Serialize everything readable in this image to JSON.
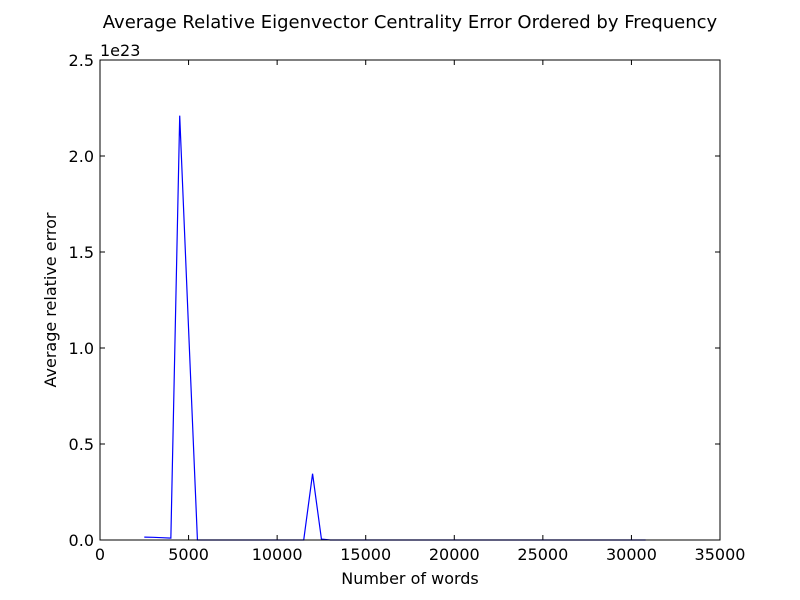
{
  "chart_data": {
    "type": "line",
    "title": "Average Relative Eigenvector Centrality Error Ordered by Frequency",
    "xlabel": "Number of words",
    "ylabel": "Average relative error",
    "y_offset_label": "1e23",
    "xlim": [
      0,
      35000
    ],
    "ylim": [
      0,
      2.5
    ],
    "x_ticks": [
      0,
      5000,
      10000,
      15000,
      20000,
      25000,
      30000,
      35000
    ],
    "x_tick_labels": [
      "0",
      "5000",
      "10000",
      "15000",
      "20000",
      "25000",
      "30000",
      "35000"
    ],
    "y_ticks": [
      0.0,
      0.5,
      1.0,
      1.5,
      2.0,
      2.5
    ],
    "y_tick_labels": [
      "0.0",
      "0.5",
      "1.0",
      "1.5",
      "2.0",
      "2.5"
    ],
    "grid": false,
    "series": [
      {
        "color": "#0000ff",
        "x": [
          2500,
          3000,
          3500,
          4000,
          4500,
          5000,
          5500,
          6000,
          6500,
          7000,
          7500,
          8000,
          8500,
          9000,
          9500,
          10000,
          10500,
          11000,
          11500,
          12000,
          12500,
          13000,
          13500,
          14000,
          15000,
          16000,
          17000,
          18000,
          19000,
          20000,
          21000,
          22000,
          23000,
          24000,
          25000,
          26000,
          27000,
          28000,
          29000,
          30000,
          30800
        ],
        "y": [
          0.015,
          0.014,
          0.012,
          0.01,
          2.21,
          1.1,
          0.0,
          0.0,
          0.0,
          0.0,
          0.0,
          0.0,
          0.0,
          0.0,
          0.0,
          0.0,
          0.0,
          0.0,
          0.0,
          0.345,
          0.005,
          0.0,
          0.0,
          0.0,
          0.0,
          0.0,
          0.0,
          0.0,
          0.0,
          0.0,
          0.0,
          0.0,
          0.0,
          0.0,
          0.0,
          0.0,
          0.0,
          0.0,
          0.0,
          0.0,
          0.0
        ]
      }
    ]
  }
}
